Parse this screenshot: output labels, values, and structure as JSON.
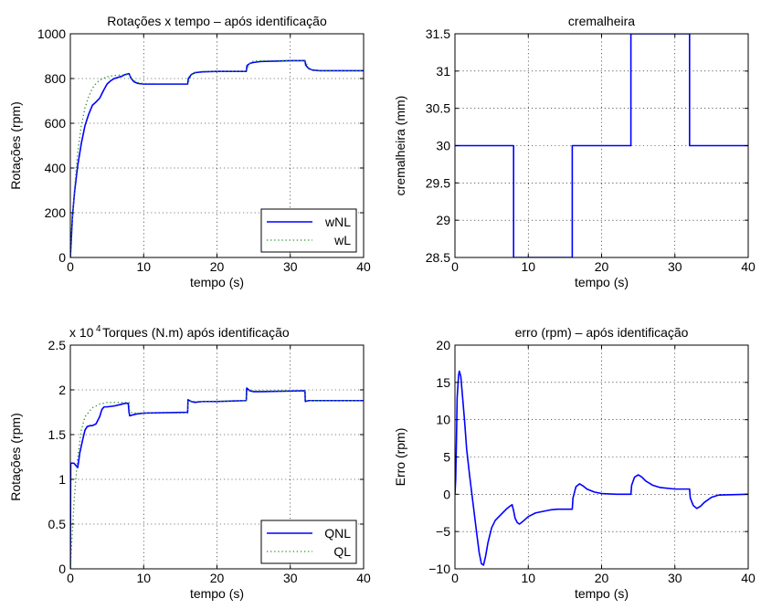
{
  "chart_data": [
    {
      "type": "line",
      "title": "Rotações  x tempo – após identificação",
      "xlabel": "tempo (s)",
      "ylabel": "Rotações (rpm)",
      "xlim": [
        0,
        40
      ],
      "ylim": [
        0,
        1000
      ],
      "xticks": [
        0,
        10,
        20,
        30,
        40
      ],
      "yticks": [
        0,
        200,
        400,
        600,
        800,
        1000
      ],
      "grid": true,
      "legend": "bottom-right",
      "series": [
        {
          "name": "wNL",
          "style": "solid",
          "color": "#0000ff",
          "x": [
            0,
            0.3,
            0.6,
            1.0,
            1.5,
            2.0,
            2.5,
            3.0,
            3.5,
            4.0,
            4.5,
            5.0,
            5.5,
            6.0,
            7.0,
            7.5,
            8.0,
            8.3,
            8.7,
            9.2,
            10.0,
            12.0,
            14.0,
            16.0,
            16.1,
            16.5,
            17.0,
            18.0,
            20.0,
            22.0,
            24.0,
            24.1,
            24.5,
            25.0,
            26.0,
            28.0,
            30.0,
            32.0,
            32.1,
            32.5,
            33.0,
            34.0,
            36.0,
            38.0,
            40.0
          ],
          "y": [
            0,
            190,
            300,
            410,
            510,
            590,
            640,
            680,
            695,
            712,
            745,
            775,
            790,
            800,
            810,
            818,
            822,
            800,
            785,
            778,
            775,
            775,
            775,
            775,
            800,
            818,
            826,
            830,
            832,
            832,
            832,
            858,
            868,
            872,
            876,
            878,
            880,
            880,
            860,
            845,
            838,
            835,
            835,
            835,
            835
          ]
        },
        {
          "name": "wL",
          "style": "dotted",
          "color": "#2f8f2f",
          "x": [
            0,
            0.5,
            1.0,
            1.5,
            2.0,
            2.5,
            3.0,
            3.5,
            4.0,
            5.0,
            6.0,
            7.0,
            8.0,
            8.5,
            9.0,
            10.0,
            12.0,
            16.0,
            16.5,
            17.0,
            18.0,
            24.0,
            24.5,
            25.0,
            26.0,
            32.0,
            32.5,
            33.0,
            34.0,
            40.0
          ],
          "y": [
            0,
            280,
            470,
            590,
            670,
            720,
            755,
            778,
            793,
            808,
            814,
            816,
            817,
            795,
            783,
            778,
            777,
            777,
            815,
            828,
            832,
            832,
            870,
            878,
            880,
            880,
            848,
            838,
            835,
            835
          ]
        }
      ]
    },
    {
      "type": "line",
      "title": "cremalheira",
      "xlabel": "tempo (s)",
      "ylabel": "cremalheira (mm)",
      "xlim": [
        0,
        40
      ],
      "ylim": [
        28.5,
        31.5
      ],
      "xticks": [
        0,
        10,
        20,
        30,
        40
      ],
      "yticks": [
        28.5,
        29,
        29.5,
        30,
        30.5,
        31,
        31.5
      ],
      "ytick_labels": [
        "28.5",
        "29",
        "29.5",
        "30",
        "30.5",
        "31",
        "31.5"
      ],
      "grid": true,
      "series": [
        {
          "color": "#0000ff",
          "style": "solid",
          "x": [
            0,
            8,
            8,
            16,
            16,
            24,
            24,
            32,
            32,
            40
          ],
          "y": [
            30,
            30,
            28.5,
            28.5,
            30,
            30,
            31.5,
            31.5,
            30,
            30
          ]
        }
      ]
    },
    {
      "type": "line",
      "title": "Torques (N.m) após identificação",
      "exponent_label": "x 10",
      "exponent_power": "4",
      "xlabel": "tempo (s)",
      "ylabel": "Rotações (rpm)",
      "xlim": [
        0,
        40
      ],
      "ylim": [
        0,
        2.5
      ],
      "xticks": [
        0,
        10,
        20,
        30,
        40
      ],
      "yticks": [
        0,
        0.5,
        1,
        1.5,
        2,
        2.5
      ],
      "ytick_labels": [
        "0",
        "0.5",
        "1",
        "1.5",
        "2",
        "2.5"
      ],
      "grid": true,
      "legend": "bottom-right",
      "series": [
        {
          "name": "QNL",
          "style": "solid",
          "color": "#0000ff",
          "x": [
            0,
            0.05,
            0.2,
            0.5,
            0.8,
            1.0,
            1.3,
            1.7,
            2.0,
            2.3,
            2.7,
            3.0,
            3.5,
            4.0,
            4.3,
            4.6,
            5.0,
            6.0,
            7.0,
            7.5,
            7.9,
            8.0,
            8.1,
            8.5,
            9.0,
            10.0,
            16.0,
            16.05,
            16.5,
            17.0,
            18.0,
            20.0,
            24.0,
            24.05,
            24.5,
            25.0,
            26.0,
            32.0,
            32.05,
            32.5,
            33.0,
            34.0,
            40.0
          ],
          "y": [
            0,
            1.18,
            1.18,
            1.18,
            1.15,
            1.13,
            1.3,
            1.45,
            1.55,
            1.59,
            1.6,
            1.6,
            1.62,
            1.7,
            1.78,
            1.81,
            1.81,
            1.82,
            1.84,
            1.85,
            1.85,
            1.75,
            1.71,
            1.72,
            1.73,
            1.74,
            1.75,
            1.89,
            1.87,
            1.86,
            1.87,
            1.87,
            1.88,
            2.02,
            1.99,
            1.98,
            1.98,
            1.99,
            1.87,
            1.88,
            1.88,
            1.88,
            1.88
          ]
        },
        {
          "name": "QL",
          "style": "dotted",
          "color": "#2f8f2f",
          "x": [
            0,
            0.5,
            1.0,
            1.5,
            2.0,
            3.0,
            4.0,
            5.0,
            6.0,
            8.0,
            8.1,
            9.0,
            10.0,
            16.0,
            16.1,
            17.0,
            24.0,
            24.1,
            25.0,
            32.0,
            32.1,
            33.0,
            40.0
          ],
          "y": [
            0,
            0.75,
            1.25,
            1.55,
            1.7,
            1.8,
            1.84,
            1.86,
            1.86,
            1.86,
            1.75,
            1.74,
            1.74,
            1.74,
            1.88,
            1.87,
            1.88,
            1.99,
            1.99,
            1.99,
            1.88,
            1.88,
            1.88
          ]
        }
      ]
    },
    {
      "type": "line",
      "title": "erro (rpm) – após identificação",
      "xlabel": "tempo (s)",
      "ylabel": "Erro (rpm)",
      "xlim": [
        0,
        40
      ],
      "ylim": [
        -10,
        20
      ],
      "xticks": [
        0,
        10,
        20,
        30,
        40
      ],
      "yticks": [
        -10,
        -5,
        0,
        5,
        10,
        15,
        20
      ],
      "ytick_labels": [
        "−10",
        "−5",
        "0",
        "5",
        "10",
        "15",
        "20"
      ],
      "grid": true,
      "series": [
        {
          "color": "#0000ff",
          "style": "solid",
          "x": [
            0,
            0.1,
            0.2,
            0.3,
            0.5,
            0.6,
            0.8,
            1.0,
            1.3,
            1.6,
            2.0,
            2.5,
            3.0,
            3.3,
            3.6,
            3.9,
            4.2,
            4.5,
            5.0,
            5.5,
            6.0,
            7.0,
            7.5,
            7.8,
            8.0,
            8.2,
            8.5,
            8.8,
            9.2,
            10.0,
            11.0,
            12.0,
            13.0,
            14.0,
            15.0,
            16.0,
            16.1,
            16.5,
            17.0,
            17.5,
            18.0,
            19.0,
            20.0,
            22.0,
            24.0,
            24.1,
            24.5,
            25.0,
            25.5,
            26.0,
            27.0,
            28.0,
            30.0,
            32.0,
            32.1,
            32.5,
            33.0,
            33.5,
            34.0,
            35.0,
            36.0,
            40.0
          ],
          "y": [
            0,
            2.0,
            7.0,
            13.0,
            16.0,
            16.5,
            15.8,
            13.5,
            10.0,
            6.0,
            2.5,
            -1.5,
            -5.5,
            -7.8,
            -9.3,
            -9.5,
            -8.2,
            -6.5,
            -4.5,
            -3.5,
            -3.0,
            -2.0,
            -1.6,
            -1.4,
            -2.2,
            -3.2,
            -3.8,
            -4.0,
            -3.7,
            -3.0,
            -2.5,
            -2.3,
            -2.1,
            -2.0,
            -2.0,
            -2.0,
            -0.5,
            1.0,
            1.4,
            1.1,
            0.7,
            0.3,
            0.1,
            0.0,
            0.0,
            1.2,
            2.3,
            2.6,
            2.3,
            1.8,
            1.2,
            0.9,
            0.7,
            0.7,
            -0.5,
            -1.5,
            -1.9,
            -1.6,
            -1.1,
            -0.4,
            -0.1,
            0.0
          ]
        }
      ]
    }
  ]
}
